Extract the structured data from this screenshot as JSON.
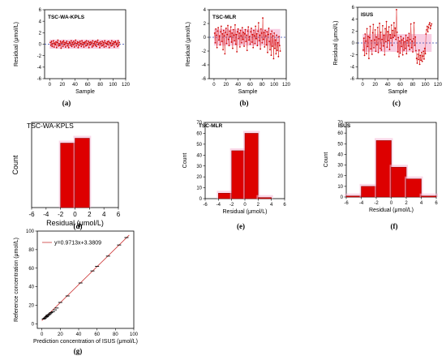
{
  "chart_data": [
    {
      "panel": "(a)",
      "type": "scatter",
      "title": "TSC-WA-KPLS",
      "xlabel": "Sample",
      "ylabel": "Residual (μmol/L)",
      "xlim": [
        -8,
        120
      ],
      "ylim": [
        -6,
        6
      ],
      "xticks": [
        0,
        20,
        40,
        60,
        80,
        100,
        120
      ],
      "yticks": [
        -6,
        -4,
        -2,
        0,
        2,
        4,
        6
      ],
      "band": [
        -0.8,
        0.8
      ],
      "y": [
        0.3,
        -0.2,
        0.5,
        -0.4,
        0.1,
        0.6,
        -0.5,
        0.2,
        -0.1,
        0.4,
        -0.6,
        0.3,
        0.7,
        -0.3,
        0.1,
        -0.2,
        0.5,
        -0.7,
        0.2,
        0.4,
        -0.4,
        0.6,
        -0.1,
        0.3,
        -0.5,
        0.2,
        0.5,
        -0.3,
        0.1,
        -0.6,
        0.4,
        0.2,
        -0.2,
        0.6,
        -0.4,
        0.3,
        -0.1,
        0.5,
        -0.5,
        0.2,
        0.7,
        -0.3,
        0.1,
        0.4,
        -0.6,
        0.3,
        -0.2,
        0.5,
        0.1,
        -0.4,
        0.6,
        -0.1,
        0.3,
        -0.5,
        0.2,
        0.4,
        -0.3,
        0.6,
        -0.2,
        0.1,
        0.5,
        -0.6,
        0.3,
        -0.1,
        0.4,
        0.2,
        -0.5,
        0.6,
        -0.3,
        0.1,
        0.4,
        -0.2,
        0.5,
        -0.4,
        0.3,
        0.7,
        -0.1,
        0.2,
        -0.6,
        0.4,
        0.1,
        -0.3,
        0.5,
        -0.2,
        0.3,
        -0.5,
        0.6,
        0.2,
        -0.4,
        0.1,
        0.4,
        -0.1,
        0.5,
        -0.6,
        0.3,
        0.2,
        -0.3,
        0.6,
        -0.2,
        0.1,
        0.4,
        -0.5,
        0.3,
        0.5,
        -0.1,
        0.2,
        -0.4,
        0.6,
        -0.2,
        0.3
      ]
    },
    {
      "panel": "(b)",
      "type": "scatter",
      "title": "TSC-MLR",
      "xlabel": "Sample",
      "ylabel": "Residual (μmol/L)",
      "xlim": [
        -8,
        120
      ],
      "ylim": [
        -6,
        4
      ],
      "xticks": [
        0,
        20,
        40,
        60,
        80,
        100,
        120
      ],
      "yticks": [
        -6,
        -4,
        -2,
        0,
        2,
        4
      ],
      "band": [
        -1.2,
        1.2
      ],
      "y": [
        0.6,
        -0.8,
        1.2,
        0.3,
        -1.5,
        0.9,
        1.4,
        -0.4,
        0.2,
        -1.1,
        0.8,
        1.6,
        -0.6,
        0.5,
        -1.8,
        1.0,
        0.2,
        -2.4,
        0.7,
        1.3,
        -0.9,
        0.4,
        1.7,
        -0.3,
        -1.2,
        0.9,
        0.1,
        1.5,
        -0.7,
        0.6,
        -1.6,
        1.1,
        0.3,
        -0.5,
        1.8,
        -1.0,
        0.4,
        -2.1,
        0.8,
        1.2,
        -0.2,
        0.6,
        -1.4,
        1.0,
        0.2,
        -0.8,
        1.4,
        -0.3,
        0.7,
        -1.3,
        0.5,
        1.1,
        -0.6,
        0.3,
        -1.9,
        0.9,
        1.5,
        -0.4,
        0.1,
        -1.0,
        0.8,
        1.3,
        -0.7,
        0.4,
        -1.5,
        1.0,
        0.2,
        -0.9,
        1.6,
        -0.2,
        0.5,
        -1.2,
        0.9,
        2.1,
        -0.5,
        0.3,
        -1.7,
        1.2,
        0.6,
        -0.8,
        2.8,
        -0.3,
        0.7,
        -1.4,
        1.0,
        0.2,
        -1.1,
        0.8,
        -2.2,
        0.4,
        1.3,
        -0.6,
        -1.8,
        0.5,
        -2.6,
        0.9,
        -1.3,
        0.2,
        -3.1,
        0.6,
        -1.6,
        -0.4,
        -2.4,
        0.3,
        -1.9,
        -0.8,
        -2.8,
        0.1,
        -1.2,
        -2.0
      ]
    },
    {
      "panel": "(c)",
      "type": "scatter",
      "title": "ISUS",
      "xlabel": "Sample",
      "ylabel": "Residual (μmol/L)",
      "xlim": [
        -8,
        120
      ],
      "ylim": [
        -6,
        6
      ],
      "xticks": [
        0,
        20,
        40,
        60,
        80,
        100,
        120
      ],
      "yticks": [
        -6,
        -4,
        -2,
        0,
        2,
        4,
        6
      ],
      "band": [
        -1.5,
        1.5
      ],
      "y": [
        -1.2,
        0.8,
        -2.1,
        1.5,
        0.3,
        -1.8,
        2.4,
        -0.6,
        1.1,
        -2.6,
        0.9,
        2.8,
        -1.0,
        0.4,
        -1.9,
        1.7,
        3.1,
        -0.8,
        0.5,
        2.2,
        -1.4,
        1.0,
        -0.3,
        2.6,
        -1.6,
        0.7,
        3.3,
        -0.9,
        1.8,
        -1.2,
        0.6,
        2.9,
        -0.5,
        1.3,
        -2.0,
        2.4,
        0.2,
        3.6,
        -0.7,
        1.9,
        0.4,
        2.7,
        -1.1,
        1.4,
        0.8,
        3.0,
        -0.4,
        2.1,
        0.9,
        3.4,
        1.2,
        2.5,
        0.6,
        5.6,
        1.8,
        -1.5,
        0.9,
        -2.3,
        0.3,
        -1.7,
        1.1,
        -0.6,
        0.5,
        -2.0,
        0.8,
        -1.2,
        0.2,
        -0.9,
        1.3,
        -1.8,
        0.4,
        0.9,
        -0.5,
        1.6,
        -1.1,
        0.6,
        3.2,
        -0.8,
        0.3,
        -1.5,
        0.7,
        3.4,
        -0.4,
        1.0,
        -1.3,
        -2.6,
        -3.4,
        -1.9,
        -2.8,
        -1.2,
        -3.6,
        -2.1,
        -2.9,
        -1.6,
        -3.1,
        -2.2,
        -1.4,
        -2.7,
        -0.9,
        -1.8,
        1.5,
        2.2,
        2.8,
        1.9,
        2.6,
        3.1,
        3.4,
        2.4,
        2.9,
        3.2
      ]
    },
    {
      "panel": "(d)",
      "type": "bar",
      "title": "TSC-WA-KPLS",
      "xlabel": "Residual (μmol/L)",
      "ylabel": "Count",
      "xlim": [
        -6,
        6
      ],
      "ylim": [
        0,
        70
      ],
      "xticks": [
        -6,
        -4,
        -2,
        0,
        2,
        4,
        6
      ],
      "bins": [
        [
          -2,
          0
        ],
        [
          0,
          2
        ]
      ],
      "values": [
        53,
        57
      ]
    },
    {
      "panel": "(e)",
      "type": "bar",
      "title": "TSC-MLR",
      "xlabel": "Residual (μmol/L)",
      "ylabel": "Count",
      "xlim": [
        -6,
        6
      ],
      "ylim": [
        0,
        70
      ],
      "xticks": [
        -6,
        -4,
        -2,
        0,
        2,
        4,
        6
      ],
      "yticks": [
        0,
        10,
        20,
        30,
        40,
        50,
        60,
        70
      ],
      "bins": [
        [
          -4,
          -2
        ],
        [
          -2,
          0
        ],
        [
          0,
          2
        ],
        [
          2,
          4
        ]
      ],
      "values": [
        5,
        44,
        60,
        1
      ]
    },
    {
      "panel": "(f)",
      "type": "bar",
      "title": "ISUS",
      "xlabel": "Residual (μmol/L)",
      "ylabel": "Count",
      "xlim": [
        -6,
        6
      ],
      "ylim": [
        0,
        70
      ],
      "xticks": [
        -6,
        -4,
        -2,
        0,
        2,
        4,
        6
      ],
      "yticks": [
        0,
        10,
        20,
        30,
        40,
        50,
        60,
        70
      ],
      "bins": [
        [
          -6,
          -4
        ],
        [
          -4,
          -2
        ],
        [
          -2,
          0
        ],
        [
          0,
          2
        ],
        [
          2,
          4
        ],
        [
          4,
          6
        ]
      ],
      "values": [
        1,
        10,
        53,
        28,
        17,
        1
      ]
    },
    {
      "panel": "(g)",
      "type": "scatter",
      "title": "",
      "xlabel": "Prediction concentration of ISUS (μmol/L)",
      "ylabel": "Reference concentration (μmol/L)",
      "xlim": [
        -5,
        100
      ],
      "ylim": [
        -5,
        100
      ],
      "xticks": [
        0,
        20,
        40,
        60,
        80,
        100
      ],
      "yticks": [
        0,
        20,
        40,
        60,
        80,
        100
      ],
      "legend": "y=0.9713x+3.3809",
      "fit": {
        "slope": 0.9713,
        "intercept": 3.3809
      },
      "points": [
        [
          2,
          5
        ],
        [
          3,
          6
        ],
        [
          4,
          7
        ],
        [
          5,
          7.5
        ],
        [
          5.5,
          8
        ],
        [
          6,
          9
        ],
        [
          7,
          9.5
        ],
        [
          8,
          10
        ],
        [
          9,
          11
        ],
        [
          10,
          12
        ],
        [
          12,
          13
        ],
        [
          14,
          15
        ],
        [
          16,
          17
        ],
        [
          20,
          23
        ],
        [
          28,
          30
        ],
        [
          42,
          44
        ],
        [
          55,
          57
        ],
        [
          60,
          62
        ],
        [
          72,
          73
        ],
        [
          84,
          85
        ],
        [
          92,
          93
        ]
      ]
    }
  ],
  "captions": [
    "(a)",
    "(b)",
    "(c)",
    "(d)",
    "(e)",
    "(f)",
    "(g)"
  ],
  "colors": {
    "marker": "#cc0000",
    "bar": "#dd0000",
    "band": "#f5b8d6",
    "line": "#cc3333",
    "zero": "#3344aa"
  }
}
